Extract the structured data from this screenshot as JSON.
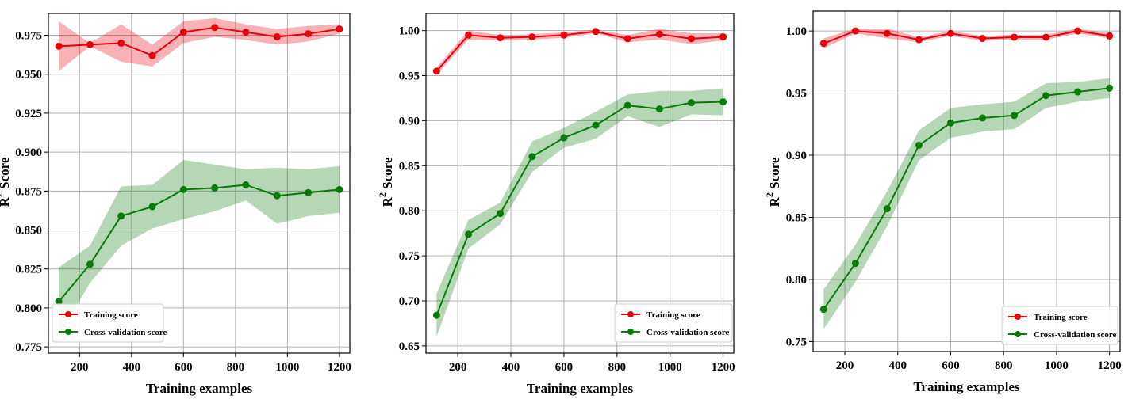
{
  "chart_data": [
    {
      "type": "line",
      "xlabel": "Training examples",
      "ylabel": "R² Score",
      "ylabel_base": "R",
      "ylabel_sup": "2",
      "ylabel_rest": " Score",
      "xlim": [
        80,
        1240
      ],
      "ylim": [
        0.771,
        0.989
      ],
      "xticks": [
        200,
        400,
        600,
        800,
        1000,
        1200
      ],
      "yticks": [
        0.775,
        0.8,
        0.825,
        0.85,
        0.875,
        0.9,
        0.925,
        0.95,
        0.975
      ],
      "ytick_labels": [
        "0.775",
        "0.800",
        "0.825",
        "0.850",
        "0.875",
        "0.900",
        "0.925",
        "0.950",
        "0.975"
      ],
      "grid": true,
      "legend_position": "lower-left",
      "x": [
        120,
        240,
        360,
        480,
        600,
        720,
        840,
        960,
        1080,
        1200
      ],
      "series": [
        {
          "name": "Training score",
          "color": "#e8000b",
          "values": [
            0.968,
            0.969,
            0.97,
            0.962,
            0.977,
            0.98,
            0.977,
            0.974,
            0.976,
            0.979
          ],
          "lower": [
            0.952,
            0.968,
            0.958,
            0.955,
            0.97,
            0.974,
            0.972,
            0.969,
            0.971,
            0.976
          ],
          "upper": [
            0.984,
            0.97,
            0.982,
            0.969,
            0.984,
            0.986,
            0.982,
            0.979,
            0.981,
            0.982
          ]
        },
        {
          "name": "Cross-validation score",
          "color": "#0a7a0a",
          "values": [
            0.804,
            0.828,
            0.859,
            0.865,
            0.876,
            0.877,
            0.879,
            0.872,
            0.874,
            0.876
          ],
          "lower": [
            0.782,
            0.816,
            0.84,
            0.851,
            0.857,
            0.862,
            0.869,
            0.854,
            0.859,
            0.861
          ],
          "upper": [
            0.826,
            0.84,
            0.878,
            0.879,
            0.895,
            0.892,
            0.889,
            0.89,
            0.889,
            0.891
          ]
        }
      ]
    },
    {
      "type": "line",
      "xlabel": "Training examples",
      "ylabel": "R² Score",
      "ylabel_base": "R",
      "ylabel_sup": "2",
      "ylabel_rest": " Score",
      "xlim": [
        80,
        1240
      ],
      "ylim": [
        0.642,
        1.019
      ],
      "xticks": [
        200,
        400,
        600,
        800,
        1000,
        1200
      ],
      "yticks": [
        0.65,
        0.7,
        0.75,
        0.8,
        0.85,
        0.9,
        0.95,
        1.0
      ],
      "ytick_labels": [
        "0.65",
        "0.70",
        "0.75",
        "0.80",
        "0.85",
        "0.90",
        "0.95",
        "1.00"
      ],
      "grid": true,
      "legend_position": "lower-right",
      "x": [
        120,
        240,
        360,
        480,
        600,
        720,
        840,
        960,
        1080,
        1200
      ],
      "series": [
        {
          "name": "Training score",
          "color": "#e8000b",
          "values": [
            0.955,
            0.995,
            0.992,
            0.993,
            0.995,
            0.999,
            0.991,
            0.996,
            0.991,
            0.993
          ],
          "lower": [
            0.951,
            0.99,
            0.989,
            0.99,
            0.992,
            0.997,
            0.987,
            0.99,
            0.985,
            0.989
          ],
          "upper": [
            0.959,
            1.0,
            0.995,
            0.996,
            0.998,
            1.001,
            0.995,
            1.002,
            0.997,
            0.997
          ]
        },
        {
          "name": "Cross-validation score",
          "color": "#0a7a0a",
          "values": [
            0.684,
            0.774,
            0.797,
            0.86,
            0.881,
            0.895,
            0.917,
            0.913,
            0.92,
            0.921
          ],
          "lower": [
            0.66,
            0.758,
            0.785,
            0.843,
            0.87,
            0.88,
            0.905,
            0.893,
            0.907,
            0.906
          ],
          "upper": [
            0.708,
            0.79,
            0.809,
            0.877,
            0.892,
            0.91,
            0.929,
            0.933,
            0.933,
            0.936
          ]
        }
      ]
    },
    {
      "type": "line",
      "xlabel": "Training examples",
      "ylabel": "R² Score",
      "ylabel_base": "R",
      "ylabel_sup": "2",
      "ylabel_rest": " Score",
      "xlim": [
        80,
        1240
      ],
      "ylim": [
        0.742,
        1.016
      ],
      "xticks": [
        200,
        400,
        600,
        800,
        1000,
        1200
      ],
      "yticks": [
        0.75,
        0.8,
        0.85,
        0.9,
        0.95,
        1.0
      ],
      "ytick_labels": [
        "0.75",
        "0.80",
        "0.85",
        "0.90",
        "0.95",
        "1.00"
      ],
      "grid": true,
      "legend_position": "lower-right",
      "x": [
        120,
        240,
        360,
        480,
        600,
        720,
        840,
        960,
        1080,
        1200
      ],
      "series": [
        {
          "name": "Training score",
          "color": "#e8000b",
          "values": [
            0.99,
            1.0,
            0.998,
            0.993,
            0.998,
            0.994,
            0.995,
            0.995,
            1.0,
            0.996
          ],
          "lower": [
            0.986,
            0.998,
            0.994,
            0.991,
            0.996,
            0.992,
            0.993,
            0.993,
            0.998,
            0.994
          ],
          "upper": [
            0.994,
            1.002,
            1.002,
            0.995,
            1.0,
            0.996,
            0.997,
            0.997,
            1.002,
            0.998
          ]
        },
        {
          "name": "Cross-validation score",
          "color": "#0a7a0a",
          "values": [
            0.776,
            0.813,
            0.857,
            0.908,
            0.926,
            0.93,
            0.932,
            0.948,
            0.951,
            0.954
          ],
          "lower": [
            0.76,
            0.798,
            0.843,
            0.896,
            0.914,
            0.919,
            0.921,
            0.938,
            0.943,
            0.946
          ],
          "upper": [
            0.792,
            0.828,
            0.871,
            0.92,
            0.938,
            0.941,
            0.943,
            0.958,
            0.959,
            0.962
          ]
        }
      ]
    }
  ]
}
